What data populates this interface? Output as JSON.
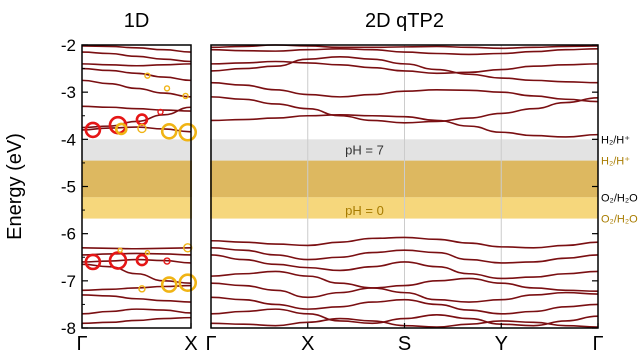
{
  "chart_data": {
    "type": "line",
    "ylabel": "Energy (eV)",
    "ylim": [
      -8,
      -2
    ],
    "yticks": [
      -8,
      -7,
      -6,
      -5,
      -4,
      -3,
      -2
    ],
    "colors": {
      "band": "#7a0f12",
      "gray_band": "#e3e3e3",
      "gold_band": "#ddb860",
      "gold_band_low": "#f6d77c",
      "red_circle": "#e51616",
      "orange_circle": "#f0b415",
      "label_gold": "#a87c00",
      "label_dark": "#000000"
    },
    "bands": {
      "gray": {
        "y": [
          -4.45,
          -4.0
        ],
        "label": "pH = 7",
        "label_y": -4.22
      },
      "gold": {
        "y": [
          -5.68,
          -4.45
        ],
        "label": "pH = 0",
        "label_y": -5.5
      },
      "gold_low_split": -5.23
    },
    "reference_labels": [
      {
        "text": "H₂/H⁺",
        "y": -4.0,
        "color": "#000000"
      },
      {
        "text": "H₂/H⁺",
        "y": -4.45,
        "color": "#a87c00"
      },
      {
        "text": "O₂/H₂O",
        "y": -5.23,
        "color": "#000000"
      },
      {
        "text": "O₂/H₂O",
        "y": -5.68,
        "color": "#a87c00"
      }
    ],
    "panels": [
      {
        "title": "1D",
        "xticks": [
          "Γ",
          "X"
        ],
        "bands": [
          [
            -2.02,
            -2.03,
            -2.06,
            -2.1,
            -2.15
          ],
          [
            -2.15,
            -2.18,
            -2.24,
            -2.3,
            -2.35
          ],
          [
            -2.4,
            -2.42,
            -2.44,
            -2.42,
            -2.4
          ],
          [
            -2.5,
            -2.54,
            -2.6,
            -2.68,
            -2.75
          ],
          [
            -2.75,
            -2.82,
            -2.92,
            -3.02,
            -3.1
          ],
          [
            -3.3,
            -3.32,
            -3.35,
            -3.38,
            -3.4
          ],
          [
            -3.75,
            -3.72,
            -3.62,
            -3.48,
            -3.32
          ],
          [
            -3.8,
            -3.76,
            -3.74,
            -3.78,
            -3.84
          ],
          [
            -6.3,
            -6.31,
            -6.32,
            -6.31,
            -6.3
          ],
          [
            -6.45,
            -6.43,
            -6.42,
            -6.43,
            -6.45
          ],
          [
            -6.6,
            -6.58,
            -6.55,
            -6.57,
            -6.62
          ],
          [
            -6.65,
            -6.7,
            -6.85,
            -7.0,
            -7.05
          ],
          [
            -7.2,
            -7.18,
            -7.15,
            -7.12,
            -7.1
          ],
          [
            -7.3,
            -7.32,
            -7.38,
            -7.42,
            -7.45
          ],
          [
            -7.7,
            -7.65,
            -7.6,
            -7.62,
            -7.68
          ],
          [
            -7.9,
            -7.88,
            -7.84,
            -7.8,
            -7.78
          ]
        ],
        "circles": [
          {
            "x": 0.1,
            "y": -3.8,
            "r": 7,
            "color": "red"
          },
          {
            "x": 0.33,
            "y": -3.7,
            "r": 8,
            "color": "red"
          },
          {
            "x": 0.55,
            "y": -3.58,
            "r": 5,
            "color": "red"
          },
          {
            "x": 0.72,
            "y": -3.42,
            "r": 2.5,
            "color": "red"
          },
          {
            "x": 0.36,
            "y": -3.78,
            "r": 5,
            "color": "orange"
          },
          {
            "x": 0.55,
            "y": -3.77,
            "r": 4,
            "color": "orange"
          },
          {
            "x": 0.8,
            "y": -3.83,
            "r": 7,
            "color": "orange"
          },
          {
            "x": 0.97,
            "y": -3.85,
            "r": 8,
            "color": "orange"
          },
          {
            "x": 0.6,
            "y": -2.65,
            "r": 2.5,
            "color": "orange"
          },
          {
            "x": 0.78,
            "y": -2.92,
            "r": 2.5,
            "color": "orange"
          },
          {
            "x": 0.95,
            "y": -3.08,
            "r": 2.5,
            "color": "orange"
          },
          {
            "x": 0.1,
            "y": -6.6,
            "r": 7,
            "color": "red"
          },
          {
            "x": 0.33,
            "y": -6.57,
            "r": 8,
            "color": "red"
          },
          {
            "x": 0.55,
            "y": -6.56,
            "r": 5,
            "color": "red"
          },
          {
            "x": 0.78,
            "y": -6.58,
            "r": 3,
            "color": "red"
          },
          {
            "x": 0.97,
            "y": -6.3,
            "r": 4,
            "color": "orange"
          },
          {
            "x": 0.8,
            "y": -7.08,
            "r": 7,
            "color": "orange"
          },
          {
            "x": 0.97,
            "y": -7.04,
            "r": 8,
            "color": "orange"
          },
          {
            "x": 0.55,
            "y": -7.17,
            "r": 3,
            "color": "orange"
          },
          {
            "x": 0.35,
            "y": -6.35,
            "r": 2,
            "color": "orange"
          },
          {
            "x": 0.6,
            "y": -6.4,
            "r": 2,
            "color": "orange"
          }
        ]
      },
      {
        "title": "2D qTP2",
        "xticks": [
          "Γ",
          "X",
          "S",
          "Y",
          "Γ"
        ],
        "bands": [
          [
            -2.05,
            -2.03,
            -2.0,
            -2.02,
            -2.05,
            -2.05,
            -2.04,
            -2.03,
            -2.05,
            -2.07,
            -2.05,
            -2.03,
            -2.02
          ],
          [
            -2.1,
            -2.12,
            -2.13,
            -2.1,
            -2.08,
            -2.1,
            -2.15,
            -2.18,
            -2.2,
            -2.18,
            -2.14,
            -2.1,
            -2.08
          ],
          [
            -2.4,
            -2.38,
            -2.35,
            -2.38,
            -2.42,
            -2.48,
            -2.55,
            -2.6,
            -2.58,
            -2.52,
            -2.45,
            -2.42,
            -2.4
          ],
          [
            -2.55,
            -2.5,
            -2.45,
            -2.3,
            -2.25,
            -2.3,
            -2.4,
            -2.52,
            -2.62,
            -2.7,
            -2.75,
            -2.78,
            -2.8
          ],
          [
            -2.8,
            -2.85,
            -2.95,
            -3.05,
            -3.1,
            -3.05,
            -2.98,
            -2.95,
            -2.96,
            -3.0,
            -3.08,
            -3.15,
            -3.2
          ],
          [
            -3.1,
            -3.15,
            -3.25,
            -3.35,
            -3.5,
            -3.6,
            -3.65,
            -3.62,
            -3.55,
            -3.45,
            -3.35,
            -3.22,
            -3.12
          ],
          [
            -3.6,
            -3.58,
            -3.55,
            -3.5,
            -3.48,
            -3.5,
            -3.52,
            -3.6,
            -3.72,
            -3.85,
            -3.92,
            -3.95,
            -3.9
          ],
          [
            -6.15,
            -6.18,
            -6.22,
            -6.25,
            -6.18,
            -6.1,
            -6.08,
            -6.12,
            -6.2,
            -6.28,
            -6.3,
            -6.25,
            -6.18
          ],
          [
            -6.3,
            -6.35,
            -6.45,
            -6.55,
            -6.5,
            -6.4,
            -6.35,
            -6.4,
            -6.55,
            -6.62,
            -6.6,
            -6.52,
            -6.45
          ],
          [
            -6.45,
            -6.55,
            -6.65,
            -6.72,
            -6.78,
            -6.7,
            -6.6,
            -6.7,
            -6.85,
            -6.95,
            -6.92,
            -6.85,
            -6.8
          ],
          [
            -6.9,
            -6.85,
            -6.8,
            -6.9,
            -7.05,
            -7.15,
            -7.1,
            -7.0,
            -6.95,
            -7.05,
            -7.15,
            -7.2,
            -7.22
          ],
          [
            -7.05,
            -7.1,
            -7.2,
            -7.35,
            -7.25,
            -7.15,
            -7.25,
            -7.4,
            -7.45,
            -7.4,
            -7.3,
            -7.25,
            -7.28
          ],
          [
            -7.35,
            -7.4,
            -7.5,
            -7.6,
            -7.55,
            -7.45,
            -7.4,
            -7.5,
            -7.62,
            -7.7,
            -7.65,
            -7.55,
            -7.5
          ],
          [
            -7.7,
            -7.65,
            -7.6,
            -7.7,
            -7.85,
            -7.9,
            -7.8,
            -7.72,
            -7.8,
            -7.92,
            -7.95,
            -7.85,
            -7.75
          ],
          [
            -7.9,
            -7.92,
            -7.95,
            -7.88,
            -7.8,
            -7.85,
            -7.95,
            -7.98,
            -7.92,
            -7.85,
            -7.88,
            -7.95,
            -7.98
          ]
        ]
      }
    ]
  }
}
